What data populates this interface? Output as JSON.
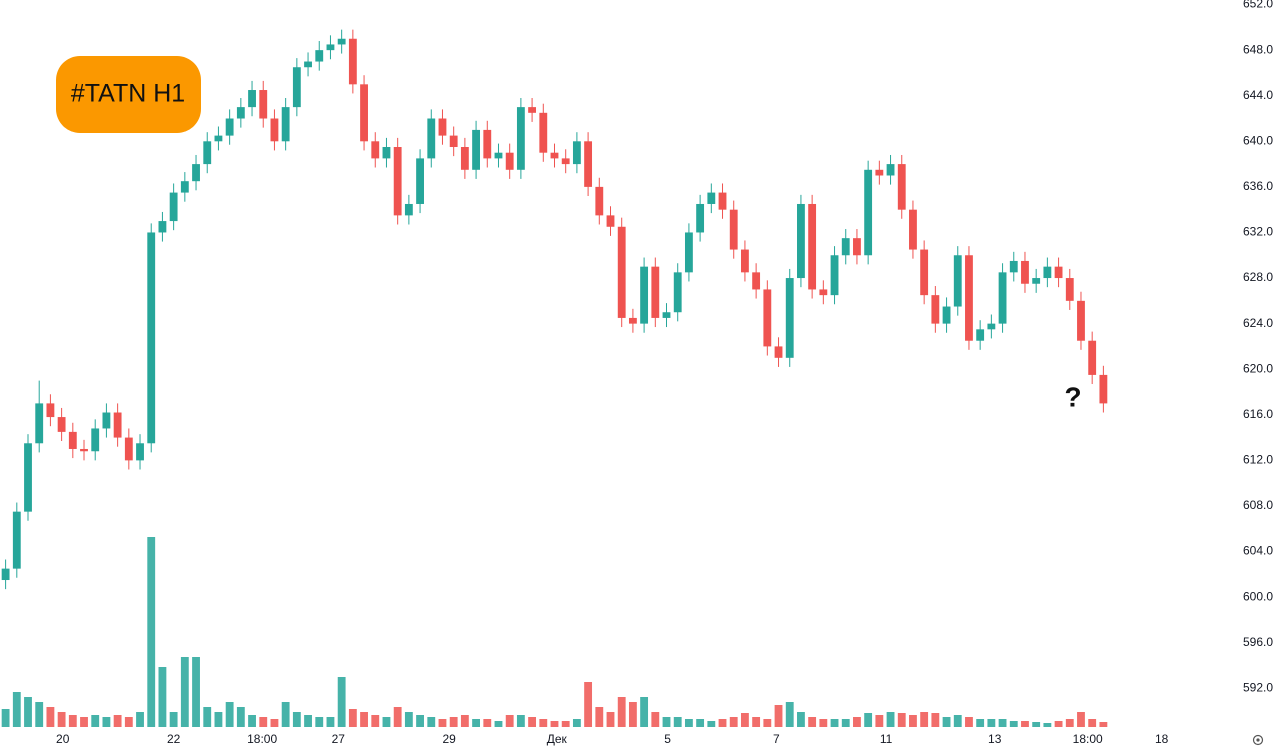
{
  "chart_data": {
    "type": "candlestick",
    "title": "#TATN H1",
    "annotation": "?",
    "up_color": "#26a69a",
    "down_color": "#ef5350",
    "badge_color": "#fb9800",
    "ylim": [
      587.9,
      652.4
    ],
    "yticks": [
      {
        "value": 592,
        "label": "592.0"
      },
      {
        "value": 596,
        "label": "596.0"
      },
      {
        "value": 600,
        "label": "600.0"
      },
      {
        "value": 604,
        "label": "604.0"
      },
      {
        "value": 608,
        "label": "608.0"
      },
      {
        "value": 612,
        "label": "612.0"
      },
      {
        "value": 616,
        "label": "616.0"
      },
      {
        "value": 620,
        "label": "620.0"
      },
      {
        "value": 624,
        "label": "624.0"
      },
      {
        "value": 628,
        "label": "628.0"
      },
      {
        "value": 632,
        "label": "632.0"
      },
      {
        "value": 636,
        "label": "636.0"
      },
      {
        "value": 640,
        "label": "640.0"
      },
      {
        "value": 644,
        "label": "644.0"
      },
      {
        "value": 648,
        "label": "648.0"
      },
      {
        "value": 652,
        "label": "652.0"
      }
    ],
    "xlim": [
      0,
      109
    ],
    "xticks": [
      {
        "value": 5.6,
        "label": "20"
      },
      {
        "value": 15.5,
        "label": "22"
      },
      {
        "value": 23.4,
        "label": "18:00"
      },
      {
        "value": 30.2,
        "label": "27"
      },
      {
        "value": 40.1,
        "label": "29"
      },
      {
        "value": 49.7,
        "label": "Дек"
      },
      {
        "value": 59.6,
        "label": "5"
      },
      {
        "value": 69.3,
        "label": "7"
      },
      {
        "value": 79.1,
        "label": "11"
      },
      {
        "value": 88.8,
        "label": "13"
      },
      {
        "value": 97.1,
        "label": "18:00"
      },
      {
        "value": 103.7,
        "label": "18"
      }
    ],
    "open": [
      601.5,
      602.5,
      607.5,
      613.5,
      617.0,
      615.8,
      614.5,
      613.0,
      612.8,
      614.8,
      616.2,
      614.0,
      612.0,
      613.5,
      632.0,
      633.0,
      635.5,
      636.5,
      638.0,
      640.0,
      640.5,
      642.0,
      643.0,
      644.5,
      642.0,
      640.0,
      643.0,
      646.5,
      647.0,
      648.0,
      648.5,
      649.0,
      645.0,
      640.0,
      638.5,
      639.5,
      633.5,
      634.5,
      638.5,
      642.0,
      640.5,
      639.5,
      637.5,
      641.0,
      638.5,
      639.0,
      637.5,
      643.0,
      642.5,
      639.0,
      638.5,
      638.0,
      640.0,
      636.0,
      633.5,
      632.5,
      624.5,
      624.0,
      629.0,
      624.5,
      625.0,
      628.5,
      632.0,
      634.5,
      635.5,
      634.0,
      630.5,
      628.5,
      627.0,
      622.0,
      621.0,
      628.0,
      634.5,
      627.0,
      626.5,
      630.0,
      631.5,
      630.0,
      637.5,
      637.0,
      638.0,
      634.0,
      630.5,
      626.5,
      624.0,
      625.5,
      630.0,
      622.5,
      623.5,
      624.0,
      628.5,
      629.5,
      627.5,
      628.0,
      629.0,
      628.0,
      626.0,
      622.5,
      619.5
    ],
    "high": [
      603.3,
      608.3,
      614.3,
      619.0,
      617.8,
      616.6,
      615.3,
      613.8,
      615.6,
      617.0,
      617.0,
      614.8,
      614.3,
      632.8,
      633.8,
      636.3,
      637.3,
      638.8,
      640.8,
      641.3,
      642.8,
      643.8,
      645.3,
      645.3,
      642.8,
      643.8,
      647.3,
      647.8,
      648.8,
      649.3,
      649.8,
      649.8,
      645.8,
      640.8,
      640.3,
      640.3,
      635.3,
      639.3,
      642.8,
      642.8,
      641.3,
      640.3,
      641.8,
      641.8,
      639.8,
      639.8,
      643.8,
      643.8,
      643.3,
      639.8,
      639.3,
      640.8,
      640.8,
      636.8,
      634.3,
      633.3,
      625.3,
      629.8,
      629.8,
      625.8,
      629.3,
      632.8,
      635.3,
      636.3,
      636.3,
      634.8,
      631.3,
      629.3,
      627.8,
      622.8,
      628.8,
      635.3,
      635.3,
      627.8,
      630.8,
      632.3,
      632.3,
      638.3,
      638.3,
      638.8,
      638.8,
      634.8,
      631.3,
      627.3,
      626.3,
      630.8,
      630.8,
      624.3,
      624.8,
      629.3,
      630.3,
      630.3,
      628.8,
      629.8,
      629.8,
      628.8,
      626.8,
      623.3,
      620.3
    ],
    "low": [
      600.7,
      601.7,
      606.7,
      612.7,
      615.0,
      613.7,
      612.2,
      612.0,
      612.0,
      614.0,
      613.2,
      611.2,
      611.2,
      612.7,
      631.2,
      632.2,
      634.7,
      635.7,
      637.2,
      639.2,
      639.7,
      641.2,
      642.2,
      641.2,
      639.2,
      639.2,
      642.2,
      645.7,
      646.2,
      647.2,
      647.7,
      644.2,
      639.2,
      637.7,
      637.7,
      632.7,
      632.7,
      633.7,
      637.7,
      639.7,
      638.7,
      636.7,
      636.7,
      637.7,
      637.7,
      636.7,
      636.7,
      641.7,
      638.2,
      637.7,
      637.2,
      637.2,
      635.2,
      632.7,
      631.7,
      623.7,
      623.2,
      623.2,
      623.7,
      623.7,
      624.2,
      627.7,
      631.2,
      633.7,
      633.2,
      629.7,
      627.7,
      626.2,
      621.2,
      620.2,
      620.2,
      627.2,
      626.2,
      625.7,
      625.7,
      629.2,
      629.2,
      629.2,
      636.2,
      636.2,
      633.2,
      629.7,
      625.7,
      623.2,
      623.2,
      624.7,
      621.7,
      621.7,
      622.7,
      623.2,
      627.7,
      626.7,
      626.7,
      627.2,
      627.2,
      625.2,
      621.7,
      618.7,
      616.2
    ],
    "close": [
      602.5,
      607.5,
      613.5,
      617.0,
      615.8,
      614.5,
      613.0,
      612.8,
      614.8,
      616.2,
      614.0,
      612.0,
      613.5,
      632.0,
      633.0,
      635.5,
      636.5,
      638.0,
      640.0,
      640.5,
      642.0,
      643.0,
      644.5,
      642.0,
      640.0,
      643.0,
      646.5,
      647.0,
      648.0,
      648.5,
      649.0,
      645.0,
      640.0,
      638.5,
      639.5,
      633.5,
      634.5,
      638.5,
      642.0,
      640.5,
      639.5,
      637.5,
      641.0,
      638.5,
      639.0,
      637.5,
      643.0,
      642.5,
      639.0,
      638.5,
      638.0,
      640.0,
      636.0,
      633.5,
      632.5,
      624.5,
      624.0,
      629.0,
      624.5,
      625.0,
      628.5,
      632.0,
      634.5,
      635.5,
      634.0,
      630.5,
      628.5,
      627.0,
      622.0,
      621.0,
      628.0,
      634.5,
      627.0,
      626.5,
      630.0,
      631.5,
      630.0,
      637.5,
      637.0,
      638.0,
      634.0,
      630.5,
      626.5,
      624.0,
      625.5,
      630.0,
      622.5,
      623.5,
      624.0,
      628.5,
      629.5,
      627.5,
      628.0,
      629.0,
      628.0,
      626.0,
      622.5,
      619.5,
      617.0
    ],
    "volume": [
      18,
      35,
      30,
      25,
      20,
      15,
      12,
      10,
      12,
      10,
      12,
      10,
      15,
      190,
      60,
      15,
      70,
      70,
      20,
      15,
      25,
      20,
      12,
      10,
      8,
      25,
      15,
      12,
      10,
      10,
      50,
      18,
      15,
      12,
      10,
      20,
      15,
      12,
      10,
      8,
      10,
      12,
      8,
      8,
      6,
      12,
      12,
      10,
      8,
      6,
      6,
      8,
      45,
      20,
      15,
      30,
      25,
      30,
      15,
      10,
      10,
      8,
      8,
      6,
      8,
      10,
      14,
      10,
      8,
      22,
      25,
      15,
      10,
      8,
      8,
      8,
      10,
      14,
      12,
      15,
      14,
      12,
      15,
      14,
      10,
      12,
      10,
      8,
      8,
      8,
      6,
      6,
      5,
      4,
      6,
      8,
      15,
      8,
      5
    ]
  }
}
